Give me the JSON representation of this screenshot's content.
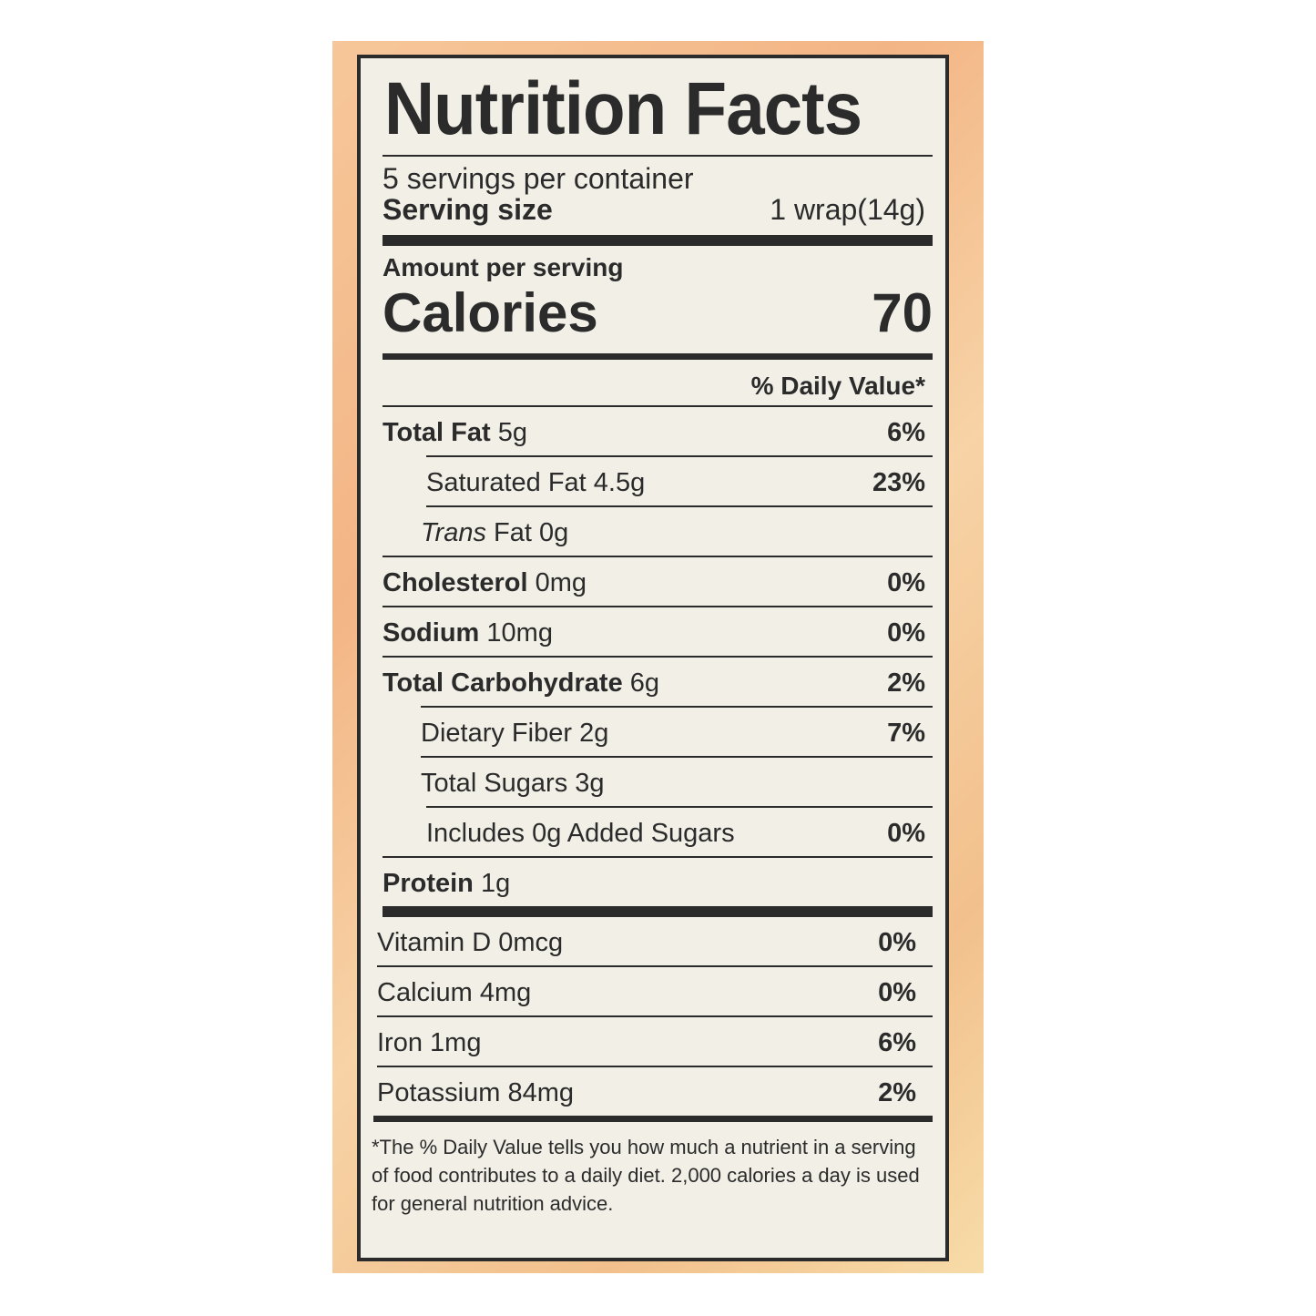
{
  "colors": {
    "ink": "#2b2b2b",
    "label_bg": "#f2efe6",
    "package": "#f3b585"
  },
  "title": "Nutrition Facts",
  "servings_per_container": "5 servings per container",
  "serving_size": {
    "label": "Serving size",
    "value": "1 wrap(14g)"
  },
  "amount_per_serving": "Amount per serving",
  "calories": {
    "label": "Calories",
    "value": "70"
  },
  "dv_header": "% Daily Value*",
  "nutrients": [
    {
      "name": "Total Fat",
      "amount": "5g",
      "dv": "6%"
    },
    {
      "name": "Saturated Fat",
      "amount": "4.5g",
      "dv": "23%"
    },
    {
      "name": "Trans",
      "name2": "Fat",
      "amount": "0g",
      "dv": ""
    },
    {
      "name": "Cholesterol",
      "amount": "0mg",
      "dv": "0%"
    },
    {
      "name": "Sodium",
      "amount": "10mg",
      "dv": "0%"
    },
    {
      "name": "Total Carbohydrate",
      "amount": "6g",
      "dv": "2%"
    },
    {
      "name": "Dietary Fiber",
      "amount": "2g",
      "dv": "7%"
    },
    {
      "name": "Total Sugars",
      "amount": "3g",
      "dv": ""
    },
    {
      "name": "Includes 0g Added Sugars",
      "amount": "",
      "dv": "0%"
    },
    {
      "name": "Protein",
      "amount": "1g",
      "dv": ""
    }
  ],
  "vitamins": [
    {
      "name": "Vitamin D",
      "amount": "0mcg",
      "dv": "0%"
    },
    {
      "name": "Calcium",
      "amount": "4mg",
      "dv": "0%"
    },
    {
      "name": "Iron",
      "amount": "1mg",
      "dv": "6%"
    },
    {
      "name": "Potassium",
      "amount": "84mg",
      "dv": "2%"
    }
  ],
  "footnote": "*The % Daily Value tells you how much a nutrient in a serving of food contributes to a daily diet. 2,000 calories a day is used for general nutrition advice."
}
